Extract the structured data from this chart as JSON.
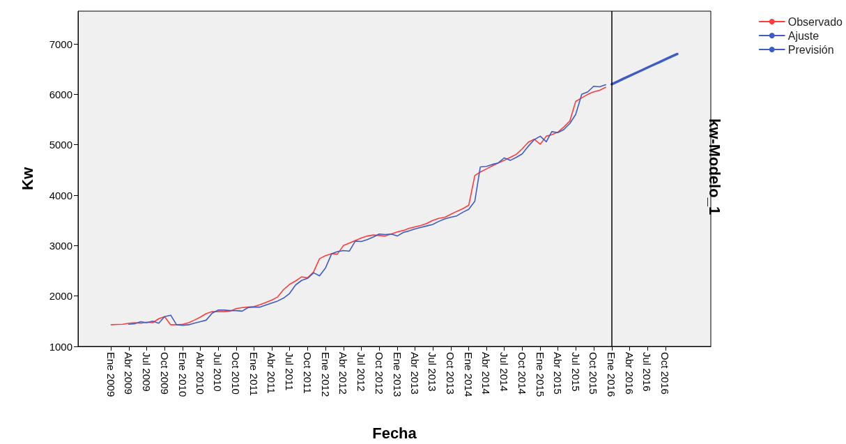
{
  "chart_data": {
    "type": "line",
    "xlabel": "Fecha",
    "ylabel": "Kw",
    "annotations": [
      "kw-Modelo_1"
    ],
    "xlim": [
      "2008-07-16",
      "2017-05-21"
    ],
    "ylim": [
      1000,
      7650
    ],
    "yticks": [
      1000,
      2000,
      3000,
      4000,
      5000,
      6000,
      7000
    ],
    "xticks": [
      {
        "value": "2009-01",
        "label": "Ene 2009"
      },
      {
        "value": "2009-04",
        "label": "Abr 2009"
      },
      {
        "value": "2009-07",
        "label": "Jul 2009"
      },
      {
        "value": "2009-10",
        "label": "Oct 2009"
      },
      {
        "value": "2010-01",
        "label": "Ene 2010"
      },
      {
        "value": "2010-04",
        "label": "Abr 2010"
      },
      {
        "value": "2010-07",
        "label": "Jul 2010"
      },
      {
        "value": "2010-10",
        "label": "Oct 2010"
      },
      {
        "value": "2011-01",
        "label": "Ene 2011"
      },
      {
        "value": "2011-04",
        "label": "Abr 2011"
      },
      {
        "value": "2011-07",
        "label": "Jul 2011"
      },
      {
        "value": "2011-10",
        "label": "Oct 2011"
      },
      {
        "value": "2012-01",
        "label": "Ene 2012"
      },
      {
        "value": "2012-04",
        "label": "Abr 2012"
      },
      {
        "value": "2012-07",
        "label": "Jul 2012"
      },
      {
        "value": "2012-10",
        "label": "Oct 2012"
      },
      {
        "value": "2013-01",
        "label": "Ene 2013"
      },
      {
        "value": "2013-04",
        "label": "Abr 2013"
      },
      {
        "value": "2013-07",
        "label": "Jul 2013"
      },
      {
        "value": "2013-10",
        "label": "Oct 2013"
      },
      {
        "value": "2014-01",
        "label": "Ene 2014"
      },
      {
        "value": "2014-04",
        "label": "Abr 2014"
      },
      {
        "value": "2014-07",
        "label": "Jul 2014"
      },
      {
        "value": "2014-10",
        "label": "Oct 2014"
      },
      {
        "value": "2015-01",
        "label": "Ene 2015"
      },
      {
        "value": "2015-04",
        "label": "Abr 2015"
      },
      {
        "value": "2015-07",
        "label": "Jul 2015"
      },
      {
        "value": "2015-10",
        "label": "Oct 2015"
      },
      {
        "value": "2016-01",
        "label": "Ene 2016"
      },
      {
        "value": "2016-04",
        "label": "Abr 2016"
      },
      {
        "value": "2016-07",
        "label": "Jul 2016"
      },
      {
        "value": "2016-10",
        "label": "Oct 2016"
      }
    ],
    "grid": false,
    "legend": "top right",
    "marker": "none",
    "line_style": "solid",
    "ref_lines": [
      {
        "axis": "x",
        "value": "2016-01",
        "color": "#000000"
      }
    ],
    "series": [
      {
        "name": "Observado",
        "color": "#ff3b3b",
        "x": [
          "2009-01",
          "2009-02",
          "2009-03",
          "2009-04",
          "2009-05",
          "2009-06",
          "2009-07",
          "2009-08",
          "2009-09",
          "2009-10",
          "2009-11",
          "2009-12",
          "2010-01",
          "2010-02",
          "2010-03",
          "2010-04",
          "2010-05",
          "2010-06",
          "2010-07",
          "2010-08",
          "2010-09",
          "2010-10",
          "2010-11",
          "2010-12",
          "2011-01",
          "2011-02",
          "2011-03",
          "2011-04",
          "2011-05",
          "2011-06",
          "2011-07",
          "2011-08",
          "2011-09",
          "2011-10",
          "2011-11",
          "2011-12",
          "2012-01",
          "2012-02",
          "2012-03",
          "2012-04",
          "2012-05",
          "2012-06",
          "2012-07",
          "2012-08",
          "2012-09",
          "2012-10",
          "2012-11",
          "2012-12",
          "2013-01",
          "2013-02",
          "2013-03",
          "2013-04",
          "2013-05",
          "2013-06",
          "2013-07",
          "2013-08",
          "2013-09",
          "2013-10",
          "2013-11",
          "2013-12",
          "2014-01",
          "2014-02",
          "2014-03",
          "2014-04",
          "2014-05",
          "2014-06",
          "2014-07",
          "2014-08",
          "2014-09",
          "2014-10",
          "2014-11",
          "2014-12",
          "2015-01",
          "2015-02",
          "2015-03",
          "2015-04",
          "2015-05",
          "2015-06",
          "2015-07",
          "2015-08",
          "2015-09",
          "2015-10",
          "2015-11",
          "2015-12"
        ],
        "values": [
          1430,
          1435,
          1440,
          1460,
          1470,
          1460,
          1480,
          1470,
          1550,
          1590,
          1430,
          1430,
          1440,
          1470,
          1520,
          1580,
          1650,
          1690,
          1690,
          1690,
          1700,
          1750,
          1770,
          1780,
          1790,
          1830,
          1870,
          1920,
          1980,
          2130,
          2230,
          2300,
          2380,
          2360,
          2480,
          2740,
          2800,
          2840,
          2830,
          3000,
          3050,
          3100,
          3150,
          3190,
          3210,
          3200,
          3190,
          3230,
          3270,
          3300,
          3340,
          3370,
          3400,
          3440,
          3500,
          3540,
          3560,
          3620,
          3680,
          3730,
          3800,
          4390,
          4460,
          4520,
          4580,
          4640,
          4690,
          4750,
          4810,
          4920,
          5050,
          5110,
          5010,
          5170,
          5200,
          5250,
          5350,
          5470,
          5860,
          5930,
          6000,
          6050,
          6080,
          6140
        ]
      },
      {
        "name": "Ajuste",
        "color": "#3d5cc4",
        "x": [
          "2009-04",
          "2009-05",
          "2009-06",
          "2009-07",
          "2009-08",
          "2009-09",
          "2009-10",
          "2009-11",
          "2009-12",
          "2010-01",
          "2010-02",
          "2010-03",
          "2010-04",
          "2010-05",
          "2010-06",
          "2010-07",
          "2010-08",
          "2010-09",
          "2010-10",
          "2010-11",
          "2010-12",
          "2011-01",
          "2011-02",
          "2011-03",
          "2011-04",
          "2011-05",
          "2011-06",
          "2011-07",
          "2011-08",
          "2011-09",
          "2011-10",
          "2011-11",
          "2011-12",
          "2012-01",
          "2012-02",
          "2012-03",
          "2012-04",
          "2012-05",
          "2012-06",
          "2012-07",
          "2012-08",
          "2012-09",
          "2012-10",
          "2012-11",
          "2012-12",
          "2013-01",
          "2013-02",
          "2013-03",
          "2013-04",
          "2013-05",
          "2013-06",
          "2013-07",
          "2013-08",
          "2013-09",
          "2013-10",
          "2013-11",
          "2013-12",
          "2014-01",
          "2014-02",
          "2014-03",
          "2014-04",
          "2014-05",
          "2014-06",
          "2014-07",
          "2014-08",
          "2014-09",
          "2014-10",
          "2014-11",
          "2014-12",
          "2015-01",
          "2015-02",
          "2015-03",
          "2015-04",
          "2015-05",
          "2015-06",
          "2015-07",
          "2015-08",
          "2015-09",
          "2015-10",
          "2015-11",
          "2015-12"
        ],
        "values": [
          1440,
          1450,
          1490,
          1470,
          1500,
          1460,
          1590,
          1620,
          1430,
          1420,
          1430,
          1460,
          1490,
          1520,
          1660,
          1720,
          1720,
          1710,
          1710,
          1700,
          1770,
          1780,
          1780,
          1820,
          1860,
          1900,
          1960,
          2050,
          2220,
          2310,
          2350,
          2460,
          2400,
          2560,
          2840,
          2880,
          2900,
          2890,
          3090,
          3080,
          3120,
          3170,
          3230,
          3220,
          3230,
          3190,
          3260,
          3290,
          3330,
          3360,
          3390,
          3420,
          3480,
          3530,
          3560,
          3590,
          3660,
          3720,
          3880,
          4560,
          4570,
          4610,
          4640,
          4740,
          4690,
          4750,
          4820,
          4970,
          5100,
          5170,
          5060,
          5260,
          5240,
          5300,
          5420,
          5600,
          6000,
          6050,
          6160,
          6150,
          6190
        ]
      },
      {
        "name": "Previsión",
        "color": "#3d5cc4",
        "x": [
          "2016-01",
          "2016-02",
          "2016-03",
          "2016-04",
          "2016-05",
          "2016-06",
          "2016-07",
          "2016-08",
          "2016-09",
          "2016-10",
          "2016-11",
          "2016-12"
        ],
        "values": [
          6200,
          6255,
          6310,
          6365,
          6420,
          6475,
          6530,
          6585,
          6640,
          6695,
          6750,
          6800
        ]
      }
    ]
  }
}
